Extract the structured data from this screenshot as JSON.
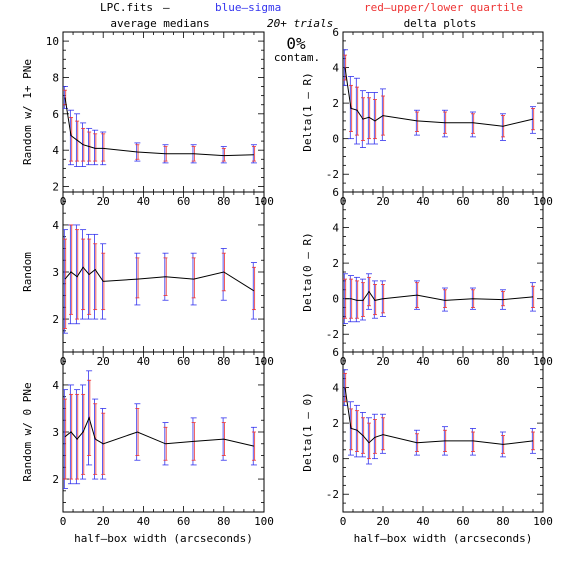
{
  "header": {
    "file_label": "LPC.fits",
    "dash": "–",
    "blue_label": "blue–sigma",
    "red_label": "red–upper/lower quartile",
    "trials_label": "20+ trials",
    "contam_value": "0%",
    "contam_label": "contam.",
    "left_title": "average medians",
    "right_title": "delta plots"
  },
  "colors": {
    "line": "#000000",
    "sigma": "#3333ee",
    "quartile": "#ee3333"
  },
  "chart_data": [
    {
      "type": "line",
      "position": "left-top",
      "ylabel": "Random w/ 1+ PNe",
      "xlim": [
        0,
        100
      ],
      "ylim": [
        1.7,
        10.5
      ],
      "xticks": [
        0,
        20,
        40,
        60,
        80,
        100
      ],
      "yticks": [
        2,
        4,
        6,
        8,
        10
      ],
      "show_xticklabels": true,
      "xlabel": "",
      "x": [
        1,
        4,
        7,
        10,
        13,
        16,
        20,
        37,
        51,
        65,
        80,
        95
      ],
      "y": [
        6.9,
        4.8,
        4.55,
        4.3,
        4.2,
        4.1,
        4.1,
        3.9,
        3.8,
        3.8,
        3.7,
        3.75
      ],
      "sigma_lo": [
        6.3,
        3.2,
        3.1,
        3.1,
        3.2,
        3.2,
        3.2,
        3.4,
        3.3,
        3.3,
        3.3,
        3.3
      ],
      "sigma_hi": [
        7.5,
        6.2,
        6.0,
        5.5,
        5.2,
        5.1,
        5.0,
        4.4,
        4.3,
        4.3,
        4.2,
        4.3
      ],
      "q_lo": [
        6.5,
        3.4,
        3.4,
        3.4,
        3.4,
        3.4,
        3.4,
        3.5,
        3.4,
        3.4,
        3.4,
        3.4
      ],
      "q_hi": [
        7.3,
        5.8,
        5.6,
        5.2,
        5.0,
        4.9,
        4.9,
        4.3,
        4.2,
        4.2,
        4.1,
        4.2
      ]
    },
    {
      "type": "line",
      "position": "right-top",
      "ylabel": "Delta(1 – R)",
      "xlim": [
        0,
        100
      ],
      "ylim": [
        -3,
        6
      ],
      "xticks": [
        0,
        20,
        40,
        60,
        80,
        100
      ],
      "yticks": [
        -2,
        0,
        2,
        4,
        6
      ],
      "show_xticklabels": true,
      "xlabel": "",
      "x": [
        1,
        4,
        7,
        10,
        13,
        16,
        20,
        37,
        51,
        65,
        80,
        95
      ],
      "y": [
        4.0,
        1.7,
        1.6,
        1.1,
        1.2,
        1.0,
        1.3,
        1.0,
        0.9,
        0.9,
        0.7,
        1.1
      ],
      "sigma_lo": [
        3.0,
        0.0,
        -0.3,
        -0.5,
        -0.3,
        -0.3,
        -0.1,
        0.2,
        0.1,
        0.1,
        -0.1,
        0.3
      ],
      "sigma_hi": [
        5.0,
        3.5,
        3.4,
        2.7,
        2.6,
        2.6,
        2.8,
        1.6,
        1.6,
        1.5,
        1.4,
        1.8
      ],
      "q_lo": [
        3.3,
        0.4,
        0.2,
        -0.1,
        0.0,
        0.0,
        0.2,
        0.4,
        0.3,
        0.3,
        0.1,
        0.5
      ],
      "q_hi": [
        4.7,
        3.0,
        2.9,
        2.3,
        2.3,
        2.2,
        2.4,
        1.5,
        1.5,
        1.4,
        1.3,
        1.7
      ]
    },
    {
      "type": "line",
      "position": "left-middle",
      "ylabel": "Random",
      "xlim": [
        0,
        100
      ],
      "ylim": [
        1.3,
        4.7
      ],
      "xticks": [
        0,
        20,
        40,
        60,
        80,
        100
      ],
      "yticks": [
        2,
        3,
        4
      ],
      "show_xticklabels": true,
      "xlabel": "",
      "x": [
        1,
        4,
        7,
        10,
        13,
        16,
        20,
        37,
        51,
        65,
        80,
        95
      ],
      "y": [
        2.85,
        3.0,
        2.9,
        3.1,
        2.95,
        3.05,
        2.8,
        2.85,
        2.9,
        2.85,
        3.0,
        2.6
      ],
      "sigma_lo": [
        1.7,
        1.9,
        1.9,
        2.0,
        2.0,
        2.0,
        2.0,
        2.3,
        2.4,
        2.3,
        2.4,
        2.0
      ],
      "sigma_hi": [
        3.9,
        4.0,
        4.0,
        3.9,
        3.8,
        3.8,
        3.6,
        3.4,
        3.4,
        3.4,
        3.5,
        3.2
      ],
      "q_lo": [
        1.8,
        2.1,
        2.0,
        2.2,
        2.1,
        2.2,
        2.2,
        2.45,
        2.5,
        2.45,
        2.6,
        2.2
      ],
      "q_hi": [
        3.7,
        4.0,
        3.9,
        3.7,
        3.7,
        3.6,
        3.4,
        3.3,
        3.3,
        3.3,
        3.4,
        3.1
      ]
    },
    {
      "type": "line",
      "position": "right-middle",
      "ylabel": "Delta(0 – R)",
      "xlim": [
        0,
        100
      ],
      "ylim": [
        -3,
        6
      ],
      "xticks": [
        0,
        20,
        40,
        60,
        80,
        100
      ],
      "yticks": [
        -2,
        0,
        2,
        4,
        6
      ],
      "show_xticklabels": true,
      "xlabel": "",
      "x": [
        1,
        4,
        7,
        10,
        13,
        16,
        20,
        37,
        51,
        65,
        80,
        95
      ],
      "y": [
        0.0,
        0.0,
        -0.1,
        -0.1,
        0.4,
        -0.1,
        0.0,
        0.2,
        -0.1,
        0.0,
        -0.05,
        0.1
      ],
      "sigma_lo": [
        -1.4,
        -1.3,
        -1.3,
        -1.2,
        -0.6,
        -1.1,
        -1.0,
        -0.6,
        -0.7,
        -0.6,
        -0.6,
        -0.7
      ],
      "sigma_hi": [
        1.4,
        1.3,
        1.2,
        1.1,
        1.4,
        1.0,
        1.0,
        1.0,
        0.6,
        0.6,
        0.5,
        0.9
      ],
      "q_lo": [
        -1.1,
        -1.1,
        -1.1,
        -1.0,
        -0.4,
        -0.9,
        -0.8,
        -0.5,
        -0.5,
        -0.5,
        -0.4,
        -0.5
      ],
      "q_hi": [
        1.1,
        1.1,
        1.0,
        0.9,
        1.2,
        0.8,
        0.8,
        0.9,
        0.5,
        0.5,
        0.4,
        0.7
      ]
    },
    {
      "type": "line",
      "position": "left-bottom",
      "ylabel": "Random w/ 0 PNe",
      "xlim": [
        0,
        100
      ],
      "ylim": [
        1.3,
        4.7
      ],
      "xticks": [
        0,
        20,
        40,
        60,
        80,
        100
      ],
      "yticks": [
        2,
        3,
        4
      ],
      "show_xticklabels": true,
      "xlabel": "half–box width (arcseconds)",
      "x": [
        1,
        4,
        7,
        10,
        13,
        16,
        20,
        37,
        51,
        65,
        80,
        95
      ],
      "y": [
        2.9,
        3.0,
        2.85,
        3.0,
        3.3,
        2.85,
        2.75,
        3.0,
        2.75,
        2.8,
        2.85,
        2.7
      ],
      "sigma_lo": [
        1.8,
        1.9,
        1.9,
        2.0,
        2.3,
        2.0,
        2.0,
        2.4,
        2.3,
        2.3,
        2.4,
        2.3
      ],
      "sigma_hi": [
        3.9,
        4.0,
        3.9,
        4.0,
        4.3,
        3.7,
        3.5,
        3.6,
        3.2,
        3.3,
        3.3,
        3.1
      ],
      "q_lo": [
        2.0,
        2.0,
        2.0,
        2.1,
        2.5,
        2.1,
        2.1,
        2.5,
        2.4,
        2.4,
        2.5,
        2.4
      ],
      "q_hi": [
        3.7,
        3.8,
        3.8,
        3.8,
        4.1,
        3.6,
        3.4,
        3.5,
        3.1,
        3.2,
        3.2,
        3.0
      ]
    },
    {
      "type": "line",
      "position": "right-bottom",
      "ylabel": "Delta(1 – 0)",
      "xlim": [
        0,
        100
      ],
      "ylim": [
        -3,
        6
      ],
      "xticks": [
        0,
        20,
        40,
        60,
        80,
        100
      ],
      "yticks": [
        -2,
        0,
        2,
        4,
        6
      ],
      "show_xticklabels": true,
      "xlabel": "half–box width (arcseconds)",
      "x": [
        1,
        4,
        7,
        10,
        13,
        16,
        20,
        37,
        51,
        65,
        80,
        95
      ],
      "y": [
        4.0,
        1.7,
        1.6,
        1.3,
        0.9,
        1.2,
        1.35,
        0.9,
        1.0,
        1.0,
        0.8,
        1.0
      ],
      "sigma_lo": [
        3.0,
        0.2,
        0.1,
        0.1,
        -0.3,
        0.0,
        0.3,
        0.2,
        0.2,
        0.2,
        0.1,
        0.3
      ],
      "sigma_hi": [
        5.0,
        3.2,
        3.0,
        2.6,
        2.3,
        2.5,
        2.5,
        1.6,
        1.8,
        1.7,
        1.5,
        1.7
      ],
      "q_lo": [
        3.2,
        0.5,
        0.4,
        0.3,
        0.0,
        0.3,
        0.5,
        0.4,
        0.4,
        0.4,
        0.3,
        0.5
      ],
      "q_hi": [
        4.8,
        2.8,
        2.7,
        2.3,
        2.0,
        2.2,
        2.3,
        1.4,
        1.6,
        1.5,
        1.3,
        1.5
      ]
    }
  ]
}
